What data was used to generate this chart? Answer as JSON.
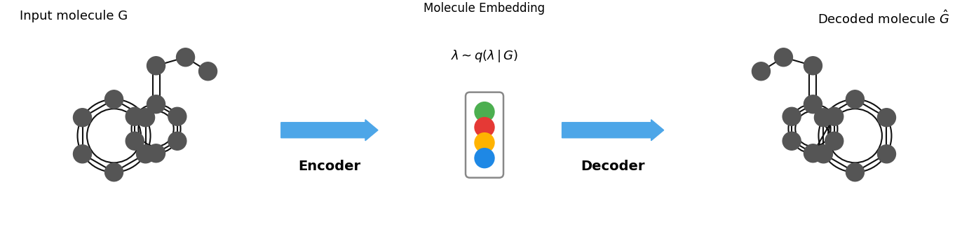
{
  "bg_color": "#ffffff",
  "node_color": "#555555",
  "bond_color": "#111111",
  "arrow_color": "#4da6e8",
  "title_left": "Input molecule G",
  "title_right": "Decoded molecule $\\hat{G}$",
  "label_embedding_top": "Molecule Embedding",
  "label_embedding_math": "$\\lambda \\sim q(\\lambda\\,|\\,G)$",
  "label_encoder": "Encoder",
  "label_decoder": "Decoder",
  "dot_colors": [
    "#4caf50",
    "#e53935",
    "#ffb300",
    "#1e88e5"
  ],
  "figw": 13.82,
  "figh": 3.44,
  "dpi": 100
}
